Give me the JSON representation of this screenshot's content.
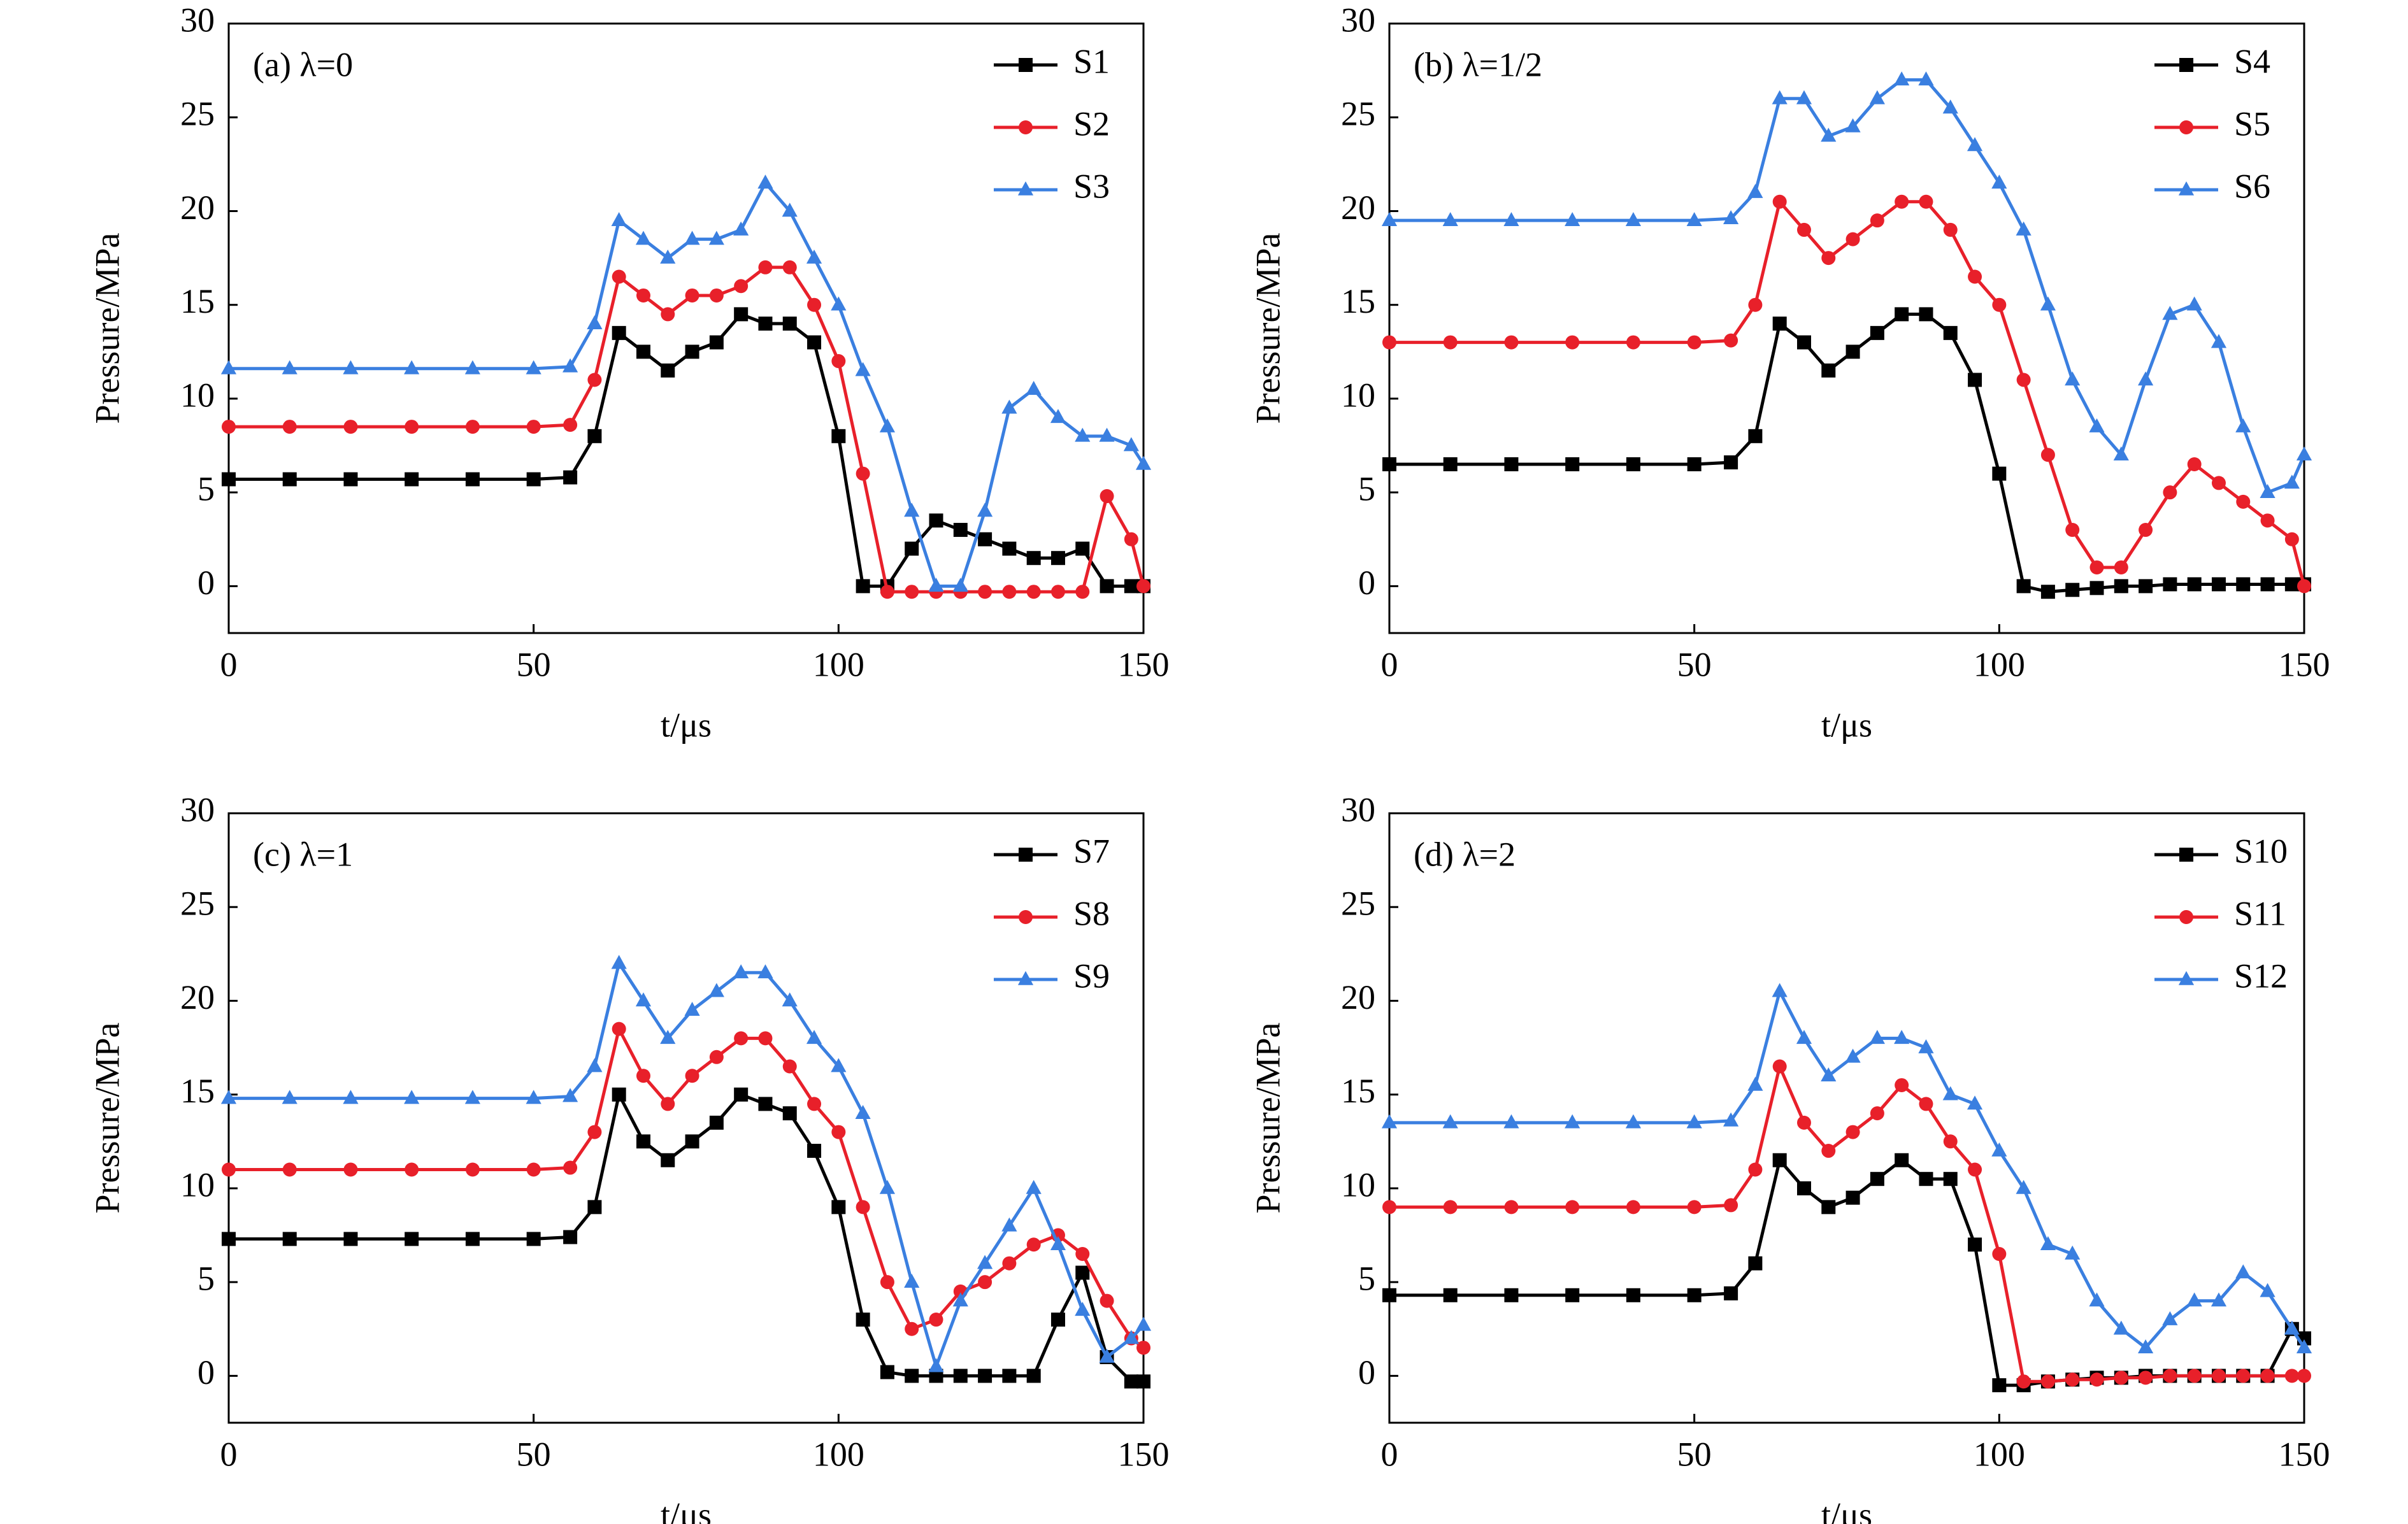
{
  "chart_data": [
    {
      "type": "line",
      "annotation": "(a) λ=0",
      "xlabel": "t/μs",
      "ylabel": "Pressure/MPa",
      "x": [
        0,
        10,
        20,
        30,
        40,
        50,
        56,
        60,
        64,
        68,
        72,
        76,
        80,
        84,
        88,
        92,
        96,
        100,
        104,
        108,
        112,
        116,
        120,
        124,
        128,
        132,
        136,
        140,
        144,
        148,
        150
      ],
      "xlim": [
        0,
        150
      ],
      "ylim": [
        -2.5,
        30
      ],
      "xticks": [
        0,
        50,
        100,
        150
      ],
      "yticks": [
        0,
        5,
        10,
        15,
        20,
        25,
        30
      ],
      "legend": "upper right",
      "series": [
        {
          "name": "S1",
          "color": "#000000",
          "marker": "square",
          "values": [
            5.7,
            5.7,
            5.7,
            5.7,
            5.7,
            5.7,
            5.8,
            8,
            13.5,
            12.5,
            11.5,
            12.5,
            13,
            14.5,
            14,
            14,
            13,
            8,
            0,
            0,
            2,
            3.5,
            3,
            2.5,
            2,
            1.5,
            1.5,
            2,
            0,
            0,
            0
          ]
        },
        {
          "name": "S2",
          "color": "#e8202a",
          "marker": "circle",
          "values": [
            8.5,
            8.5,
            8.5,
            8.5,
            8.5,
            8.5,
            8.6,
            11,
            16.5,
            15.5,
            14.5,
            15.5,
            15.5,
            16,
            17,
            17,
            15,
            12,
            6,
            -0.3,
            -0.3,
            -0.3,
            -0.3,
            -0.3,
            -0.3,
            -0.3,
            -0.3,
            -0.3,
            4.8,
            2.5,
            0
          ]
        },
        {
          "name": "S3",
          "color": "#3a7fe0",
          "marker": "triangle",
          "values": [
            11.6,
            11.6,
            11.6,
            11.6,
            11.6,
            11.6,
            11.7,
            14,
            19.5,
            18.5,
            17.5,
            18.5,
            18.5,
            19,
            21.5,
            20,
            17.5,
            15,
            11.5,
            8.5,
            4,
            0,
            0,
            4,
            9.5,
            10.5,
            9,
            8,
            8,
            7.5,
            6.5
          ]
        }
      ]
    },
    {
      "type": "line",
      "annotation": "(b) λ=1/2",
      "xlabel": "t/μs",
      "ylabel": "Pressure/MPa",
      "x": [
        0,
        10,
        20,
        30,
        40,
        50,
        56,
        60,
        64,
        68,
        72,
        76,
        80,
        84,
        88,
        92,
        96,
        100,
        104,
        108,
        112,
        116,
        120,
        124,
        128,
        132,
        136,
        140,
        144,
        148,
        150
      ],
      "xlim": [
        0,
        150
      ],
      "ylim": [
        -2.5,
        30
      ],
      "xticks": [
        0,
        50,
        100,
        150
      ],
      "yticks": [
        0,
        5,
        10,
        15,
        20,
        25,
        30
      ],
      "legend": "upper right",
      "series": [
        {
          "name": "S4",
          "color": "#000000",
          "marker": "square",
          "values": [
            6.5,
            6.5,
            6.5,
            6.5,
            6.5,
            6.5,
            6.6,
            8,
            14,
            13,
            11.5,
            12.5,
            13.5,
            14.5,
            14.5,
            13.5,
            11,
            6,
            0,
            -0.3,
            -0.2,
            -0.1,
            0,
            0,
            0.1,
            0.1,
            0.1,
            0.1,
            0.1,
            0.1,
            0.1
          ]
        },
        {
          "name": "S5",
          "color": "#e8202a",
          "marker": "circle",
          "values": [
            13,
            13,
            13,
            13,
            13,
            13,
            13.1,
            15,
            20.5,
            19,
            17.5,
            18.5,
            19.5,
            20.5,
            20.5,
            19,
            16.5,
            15,
            11,
            7,
            3,
            1,
            1,
            3,
            5,
            6.5,
            5.5,
            4.5,
            3.5,
            2.5,
            0
          ]
        },
        {
          "name": "S6",
          "color": "#3a7fe0",
          "marker": "triangle",
          "values": [
            19.5,
            19.5,
            19.5,
            19.5,
            19.5,
            19.5,
            19.6,
            21,
            26,
            26,
            24,
            24.5,
            26,
            27,
            27,
            25.5,
            23.5,
            21.5,
            19,
            15,
            11,
            8.5,
            7,
            11,
            14.5,
            15,
            13,
            8.5,
            5,
            5.5,
            7
          ]
        }
      ]
    },
    {
      "type": "line",
      "annotation": "(c) λ=1",
      "xlabel": "t/μs",
      "ylabel": "Pressure/MPa",
      "x": [
        0,
        10,
        20,
        30,
        40,
        50,
        56,
        60,
        64,
        68,
        72,
        76,
        80,
        84,
        88,
        92,
        96,
        100,
        104,
        108,
        112,
        116,
        120,
        124,
        128,
        132,
        136,
        140,
        144,
        148,
        150
      ],
      "xlim": [
        0,
        150
      ],
      "ylim": [
        -2.5,
        30
      ],
      "xticks": [
        0,
        50,
        100,
        150
      ],
      "yticks": [
        0,
        5,
        10,
        15,
        20,
        25,
        30
      ],
      "legend": "upper right",
      "series": [
        {
          "name": "S7",
          "color": "#000000",
          "marker": "square",
          "values": [
            7.3,
            7.3,
            7.3,
            7.3,
            7.3,
            7.3,
            7.4,
            9,
            15,
            12.5,
            11.5,
            12.5,
            13.5,
            15,
            14.5,
            14,
            12,
            9,
            3,
            0.2,
            0,
            0,
            0,
            0,
            0,
            0,
            3,
            5.5,
            1,
            -0.3,
            -0.3
          ]
        },
        {
          "name": "S8",
          "color": "#e8202a",
          "marker": "circle",
          "values": [
            11,
            11,
            11,
            11,
            11,
            11,
            11.1,
            13,
            18.5,
            16,
            14.5,
            16,
            17,
            18,
            18,
            16.5,
            14.5,
            13,
            9,
            5,
            2.5,
            3,
            4.5,
            5,
            6,
            7,
            7.5,
            6.5,
            4,
            2,
            1.5
          ]
        },
        {
          "name": "S9",
          "color": "#3a7fe0",
          "marker": "triangle",
          "values": [
            14.8,
            14.8,
            14.8,
            14.8,
            14.8,
            14.8,
            14.9,
            16.5,
            22,
            20,
            18,
            19.5,
            20.5,
            21.5,
            21.5,
            20,
            18,
            16.5,
            14,
            10,
            5,
            0.5,
            4,
            6,
            8,
            10,
            7,
            3.5,
            1,
            2,
            2.7
          ]
        }
      ]
    },
    {
      "type": "line",
      "annotation": "(d) λ=2",
      "xlabel": "t/μs",
      "ylabel": "Pressure/MPa",
      "x": [
        0,
        10,
        20,
        30,
        40,
        50,
        56,
        60,
        64,
        68,
        72,
        76,
        80,
        84,
        88,
        92,
        96,
        100,
        104,
        108,
        112,
        116,
        120,
        124,
        128,
        132,
        136,
        140,
        144,
        148,
        150
      ],
      "xlim": [
        0,
        150
      ],
      "ylim": [
        -2.5,
        30
      ],
      "xticks": [
        0,
        50,
        100,
        150
      ],
      "yticks": [
        0,
        5,
        10,
        15,
        20,
        25,
        30
      ],
      "legend": "upper right",
      "series": [
        {
          "name": "S10",
          "color": "#000000",
          "marker": "square",
          "values": [
            4.3,
            4.3,
            4.3,
            4.3,
            4.3,
            4.3,
            4.4,
            6,
            11.5,
            10,
            9,
            9.5,
            10.5,
            11.5,
            10.5,
            10.5,
            7,
            -0.5,
            -0.5,
            -0.3,
            -0.2,
            -0.1,
            -0.1,
            0,
            0,
            0,
            0,
            0,
            0,
            2.5,
            2
          ]
        },
        {
          "name": "S11",
          "color": "#e8202a",
          "marker": "circle",
          "values": [
            9,
            9,
            9,
            9,
            9,
            9,
            9.1,
            11,
            16.5,
            13.5,
            12,
            13,
            14,
            15.5,
            14.5,
            12.5,
            11,
            6.5,
            -0.3,
            -0.3,
            -0.2,
            -0.2,
            -0.1,
            -0.1,
            0,
            0,
            0,
            0,
            0,
            0,
            0
          ]
        },
        {
          "name": "S12",
          "color": "#3a7fe0",
          "marker": "triangle",
          "values": [
            13.5,
            13.5,
            13.5,
            13.5,
            13.5,
            13.5,
            13.6,
            15.5,
            20.5,
            18,
            16,
            17,
            18,
            18,
            17.5,
            15,
            14.5,
            12,
            10,
            7,
            6.5,
            4,
            2.5,
            1.5,
            3,
            4,
            4,
            5.5,
            4.5,
            2.5,
            1.5
          ]
        }
      ]
    }
  ]
}
